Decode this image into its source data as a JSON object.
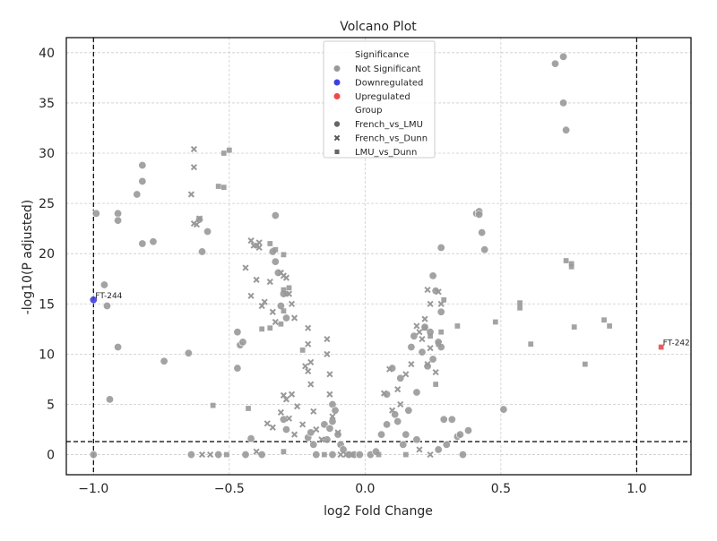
{
  "chart_data": {
    "type": "scatter",
    "title": "Volcano Plot",
    "xlabel": "log2 Fold Change",
    "ylabel": "-log10(P adjusted)",
    "xlim": [
      -1.1,
      1.2
    ],
    "ylim": [
      -2,
      41.5
    ],
    "xticks": [
      -1.0,
      -0.5,
      0.0,
      0.5,
      1.0
    ],
    "xtick_labels": [
      "−1.0",
      "−0.5",
      "0.0",
      "0.5",
      "1.0"
    ],
    "yticks": [
      0,
      5,
      10,
      15,
      20,
      25,
      30,
      35,
      40
    ],
    "ytick_labels": [
      "0",
      "5",
      "10",
      "15",
      "20",
      "25",
      "30",
      "35",
      "40"
    ],
    "grid": true,
    "thresholds": {
      "vertical": [
        -1.0,
        1.0
      ],
      "horizontal": 1.3
    },
    "legend": {
      "placement": "top-center",
      "significance_title": "Significance",
      "significance": [
        {
          "label": "Not Significant",
          "color": "#999999"
        },
        {
          "label": "Downregulated",
          "color": "#3f3fe0"
        },
        {
          "label": "Upregulated",
          "color": "#f04848"
        }
      ],
      "group_title": "Group",
      "groups": [
        {
          "label": "French_vs_LMU",
          "marker": "circle"
        },
        {
          "label": "French_vs_Dunn",
          "marker": "x"
        },
        {
          "label": "LMU_vs_Dunn",
          "marker": "square"
        }
      ]
    },
    "annotations": [
      {
        "text": "FT-244",
        "x": -1.0,
        "y": 15.4
      },
      {
        "text": "FT-242",
        "x": 1.09,
        "y": 10.7
      }
    ],
    "series": [
      {
        "name": "French_vs_LMU",
        "marker": "circle",
        "points": [
          [
            -1.0,
            15.4,
            "down"
          ],
          [
            -0.99,
            24.0
          ],
          [
            -0.96,
            16.9
          ],
          [
            -0.95,
            14.8
          ],
          [
            -0.94,
            5.5
          ],
          [
            -0.91,
            24.0
          ],
          [
            -0.91,
            23.3
          ],
          [
            -0.91,
            10.7
          ],
          [
            -1.0,
            0.0
          ],
          [
            -0.84,
            25.9
          ],
          [
            -0.82,
            28.8
          ],
          [
            -0.82,
            27.2
          ],
          [
            -0.82,
            21.0
          ],
          [
            -0.78,
            21.2
          ],
          [
            -0.74,
            9.3
          ],
          [
            -0.65,
            10.1
          ],
          [
            -0.64,
            0.0
          ],
          [
            -0.61,
            23.4
          ],
          [
            -0.6,
            20.2
          ],
          [
            -0.58,
            22.2
          ],
          [
            -0.54,
            0.0
          ],
          [
            -0.47,
            12.2
          ],
          [
            -0.46,
            10.9
          ],
          [
            -0.45,
            11.2
          ],
          [
            -0.47,
            8.6
          ],
          [
            -0.44,
            0.0
          ],
          [
            -0.42,
            1.6
          ],
          [
            -0.38,
            0.0
          ],
          [
            -0.34,
            20.2
          ],
          [
            -0.33,
            19.2
          ],
          [
            -0.33,
            23.8
          ],
          [
            -0.32,
            18.1
          ],
          [
            -0.31,
            14.8
          ],
          [
            -0.3,
            16.0
          ],
          [
            -0.29,
            13.6
          ],
          [
            -0.3,
            3.5
          ],
          [
            -0.29,
            2.5
          ],
          [
            -0.21,
            1.7
          ],
          [
            -0.2,
            2.2
          ],
          [
            -0.19,
            1.0
          ],
          [
            -0.18,
            0.0
          ],
          [
            -0.15,
            3.0
          ],
          [
            -0.14,
            1.5
          ],
          [
            -0.13,
            2.6
          ],
          [
            -0.12,
            5.0
          ],
          [
            -0.12,
            3.3
          ],
          [
            -0.11,
            4.4
          ],
          [
            -0.1,
            2.0
          ],
          [
            -0.09,
            1.0
          ],
          [
            -0.12,
            0.0
          ],
          [
            -0.08,
            0.5
          ],
          [
            -0.06,
            0.0
          ],
          [
            -0.04,
            0.0
          ],
          [
            -0.02,
            0.0
          ],
          [
            0.02,
            0.0
          ],
          [
            0.04,
            0.3
          ],
          [
            0.06,
            2.0
          ],
          [
            0.08,
            3.0
          ],
          [
            0.08,
            6.0
          ],
          [
            0.1,
            8.6
          ],
          [
            0.11,
            4.0
          ],
          [
            0.12,
            3.3
          ],
          [
            0.13,
            7.6
          ],
          [
            0.14,
            1.0
          ],
          [
            0.15,
            2.0
          ],
          [
            0.16,
            4.4
          ],
          [
            0.17,
            10.7
          ],
          [
            0.18,
            11.8
          ],
          [
            0.19,
            6.2
          ],
          [
            0.19,
            1.5
          ],
          [
            0.21,
            10.2
          ],
          [
            0.22,
            12.7
          ],
          [
            0.23,
            8.8
          ],
          [
            0.24,
            12.2
          ],
          [
            0.25,
            9.5
          ],
          [
            0.25,
            17.8
          ],
          [
            0.26,
            16.3
          ],
          [
            0.27,
            11.2
          ],
          [
            0.27,
            0.5
          ],
          [
            0.28,
            20.6
          ],
          [
            0.28,
            14.2
          ],
          [
            0.28,
            10.7
          ],
          [
            0.29,
            3.5
          ],
          [
            0.3,
            1.0
          ],
          [
            0.32,
            3.5
          ],
          [
            0.34,
            1.8
          ],
          [
            0.35,
            2.0
          ],
          [
            0.36,
            0.0
          ],
          [
            0.38,
            2.4
          ],
          [
            0.41,
            24.0
          ],
          [
            0.42,
            24.2
          ],
          [
            0.42,
            23.9
          ],
          [
            0.43,
            22.1
          ],
          [
            0.44,
            20.4
          ],
          [
            0.51,
            4.5
          ],
          [
            0.7,
            38.9
          ],
          [
            0.73,
            39.6
          ],
          [
            0.73,
            35.0
          ],
          [
            0.74,
            32.3
          ]
        ]
      },
      {
        "name": "French_vs_Dunn",
        "marker": "x",
        "points": [
          [
            -0.63,
            30.4
          ],
          [
            -0.63,
            28.6
          ],
          [
            -0.64,
            25.9
          ],
          [
            -0.63,
            23.0
          ],
          [
            -0.61,
            23.5
          ],
          [
            -0.62,
            22.9
          ],
          [
            -0.57,
            0.0
          ],
          [
            -0.6,
            0.0
          ],
          [
            -0.42,
            21.3
          ],
          [
            -0.41,
            20.8
          ],
          [
            -0.39,
            21.1
          ],
          [
            -0.39,
            20.6
          ],
          [
            -0.4,
            17.4
          ],
          [
            -0.44,
            18.6
          ],
          [
            -0.42,
            15.8
          ],
          [
            -0.38,
            14.8
          ],
          [
            -0.37,
            15.2
          ],
          [
            -0.35,
            17.2
          ],
          [
            -0.34,
            14.2
          ],
          [
            -0.33,
            13.2
          ],
          [
            -0.31,
            18.1
          ],
          [
            -0.3,
            17.8
          ],
          [
            -0.29,
            17.6
          ],
          [
            -0.28,
            16.0
          ],
          [
            -0.27,
            15.0
          ],
          [
            -0.26,
            13.6
          ],
          [
            -0.4,
            0.3
          ],
          [
            -0.36,
            3.1
          ],
          [
            -0.34,
            2.7
          ],
          [
            -0.31,
            4.2
          ],
          [
            -0.3,
            5.9
          ],
          [
            -0.29,
            5.5
          ],
          [
            -0.28,
            3.6
          ],
          [
            -0.27,
            6.0
          ],
          [
            -0.26,
            2.0
          ],
          [
            -0.25,
            4.8
          ],
          [
            -0.23,
            3.0
          ],
          [
            -0.22,
            8.8
          ],
          [
            -0.21,
            8.3
          ],
          [
            -0.2,
            7.0
          ],
          [
            -0.21,
            12.6
          ],
          [
            -0.21,
            11.0
          ],
          [
            -0.2,
            9.2
          ],
          [
            -0.19,
            4.3
          ],
          [
            -0.18,
            2.5
          ],
          [
            -0.16,
            1.5
          ],
          [
            -0.14,
            11.5
          ],
          [
            -0.14,
            10.0
          ],
          [
            -0.13,
            8.0
          ],
          [
            -0.13,
            6.0
          ],
          [
            -0.12,
            3.8
          ],
          [
            -0.1,
            2.2
          ],
          [
            -0.09,
            0.0
          ],
          [
            -0.07,
            0.0
          ],
          [
            0.07,
            6.1
          ],
          [
            0.09,
            8.5
          ],
          [
            0.1,
            4.4
          ],
          [
            0.12,
            6.5
          ],
          [
            0.13,
            5.0
          ],
          [
            0.15,
            8.0
          ],
          [
            0.17,
            9.0
          ],
          [
            0.19,
            12.8
          ],
          [
            0.2,
            12.2
          ],
          [
            0.21,
            11.5
          ],
          [
            0.22,
            13.5
          ],
          [
            0.23,
            9.0
          ],
          [
            0.24,
            10.6
          ],
          [
            0.26,
            8.2
          ],
          [
            0.24,
            15.0
          ],
          [
            0.23,
            16.4
          ],
          [
            0.27,
            16.2
          ],
          [
            0.28,
            15.0
          ],
          [
            0.2,
            0.5
          ],
          [
            0.24,
            0.0
          ]
        ]
      },
      {
        "name": "LMU_vs_Dunn",
        "marker": "square",
        "points": [
          [
            -0.5,
            30.3
          ],
          [
            -0.52,
            30.0
          ],
          [
            -0.54,
            26.7
          ],
          [
            -0.52,
            26.6
          ],
          [
            -0.56,
            4.9
          ],
          [
            -0.51,
            0.0
          ],
          [
            -0.4,
            20.8
          ],
          [
            -0.35,
            21.0
          ],
          [
            -0.33,
            20.4
          ],
          [
            -0.3,
            19.9
          ],
          [
            -0.3,
            16.4
          ],
          [
            -0.28,
            16.6
          ],
          [
            -0.29,
            16.0
          ],
          [
            -0.3,
            14.3
          ],
          [
            -0.31,
            13.0
          ],
          [
            -0.35,
            12.6
          ],
          [
            -0.38,
            12.5
          ],
          [
            -0.23,
            10.4
          ],
          [
            -0.43,
            4.6
          ],
          [
            -0.3,
            0.3
          ],
          [
            -0.15,
            0.0
          ],
          [
            -0.05,
            0.0
          ],
          [
            0.05,
            0.0
          ],
          [
            0.15,
            0.0
          ],
          [
            0.22,
            12.6
          ],
          [
            0.24,
            11.8
          ],
          [
            0.27,
            11.0
          ],
          [
            0.28,
            12.2
          ],
          [
            0.34,
            12.8
          ],
          [
            0.29,
            15.4
          ],
          [
            0.26,
            7.0
          ],
          [
            0.48,
            13.2
          ],
          [
            0.57,
            15.1
          ],
          [
            0.57,
            14.6
          ],
          [
            0.61,
            11.0
          ],
          [
            0.74,
            19.3
          ],
          [
            0.76,
            19.0
          ],
          [
            0.76,
            18.7
          ],
          [
            0.77,
            12.7
          ],
          [
            0.81,
            9.0
          ],
          [
            0.88,
            13.4
          ],
          [
            0.9,
            12.8
          ],
          [
            1.09,
            10.7,
            "up"
          ]
        ]
      }
    ]
  }
}
